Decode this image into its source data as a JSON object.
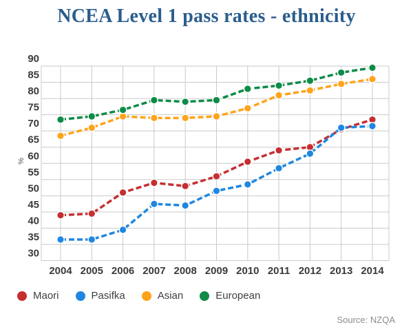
{
  "title": "NCEA Level 1 pass rates - ethnicity",
  "source": "Source: NZQA",
  "colors": {
    "title": "#2a5d8c",
    "axis_text": "#3b3b3b",
    "legend_text": "#3f3f3f",
    "gridline": "#c9c9c9",
    "source_text": "#8c8c8c",
    "maori": "#c62f31",
    "pasifka": "#1f87e0",
    "asian": "#ffa31a",
    "european": "#0d8b47"
  },
  "legend": [
    "Maori",
    "Pasifka",
    "Asian",
    "European"
  ],
  "chart_data": {
    "type": "line",
    "x": [
      2004,
      2005,
      2006,
      2007,
      2008,
      2009,
      2010,
      2011,
      2012,
      2013,
      2014
    ],
    "xlabel": "",
    "ylabel": "%",
    "ylim": [
      30,
      90
    ],
    "ytick_step": 5,
    "yticks": [
      30,
      35,
      40,
      45,
      50,
      55,
      60,
      65,
      70,
      75,
      80,
      85,
      90
    ],
    "grid": true,
    "line_style": "dashed",
    "legend_position": "bottom-left",
    "series": [
      {
        "name": "Maori",
        "color": "#c62f31",
        "values": [
          44,
          44.5,
          51,
          54,
          53,
          56,
          60.5,
          64,
          65,
          70.5,
          73.5
        ]
      },
      {
        "name": "Pasifka",
        "color": "#1f87e0",
        "values": [
          36.5,
          36.5,
          39.5,
          47.5,
          47,
          51.5,
          53.5,
          58.5,
          63,
          71,
          71.5
        ]
      },
      {
        "name": "Asian",
        "color": "#ffa31a",
        "values": [
          68.5,
          71,
          74.5,
          74,
          74,
          74.5,
          77,
          81,
          82.5,
          84.5,
          86
        ]
      },
      {
        "name": "European",
        "color": "#0d8b47",
        "values": [
          73.5,
          74.5,
          76.5,
          79.5,
          79,
          79.5,
          83,
          84,
          85.5,
          88,
          89.5
        ]
      }
    ]
  }
}
